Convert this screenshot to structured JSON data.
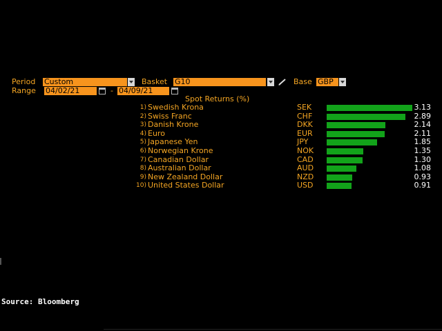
{
  "controls": {
    "period_label": "Period",
    "period_value": "Custom",
    "basket_label": "Basket",
    "basket_value": "G10",
    "base_label": "Base",
    "base_value": "GBP",
    "range_label": "Range",
    "start_date": "04/02/21",
    "range_separator": "-",
    "end_date": "04/09/21"
  },
  "table_title": "Spot Returns (%)",
  "chart_data": {
    "type": "bar",
    "title": "Spot Returns (%)",
    "orientation": "horizontal",
    "categories": [
      "Swedish Krona",
      "Swiss Franc",
      "Danish Krone",
      "Euro",
      "Japanese Yen",
      "Norwegian Krone",
      "Canadian Dollar",
      "Australian Dollar",
      "New Zealand Dollar",
      "United States Dollar"
    ],
    "codes": [
      "SEK",
      "CHF",
      "DKK",
      "EUR",
      "JPY",
      "NOK",
      "CAD",
      "AUD",
      "NZD",
      "USD"
    ],
    "values": [
      3.13,
      2.89,
      2.14,
      2.11,
      1.85,
      1.35,
      1.3,
      1.08,
      0.93,
      0.91
    ],
    "value_labels": [
      "3.13",
      "2.89",
      "2.14",
      "2.11",
      "1.85",
      "1.35",
      "1.30",
      "1.08",
      "0.93",
      "0.91"
    ],
    "ranks": [
      "1)",
      "2)",
      "3)",
      "4)",
      "5)",
      "6)",
      "7)",
      "8)",
      "9)",
      "10)"
    ],
    "bar_color": "#12a31a"
  },
  "footer": {
    "source": "Source: Bloomberg"
  },
  "colors": {
    "label": "#f5a623",
    "field_bg": "#f7941d",
    "background": "#000000"
  }
}
